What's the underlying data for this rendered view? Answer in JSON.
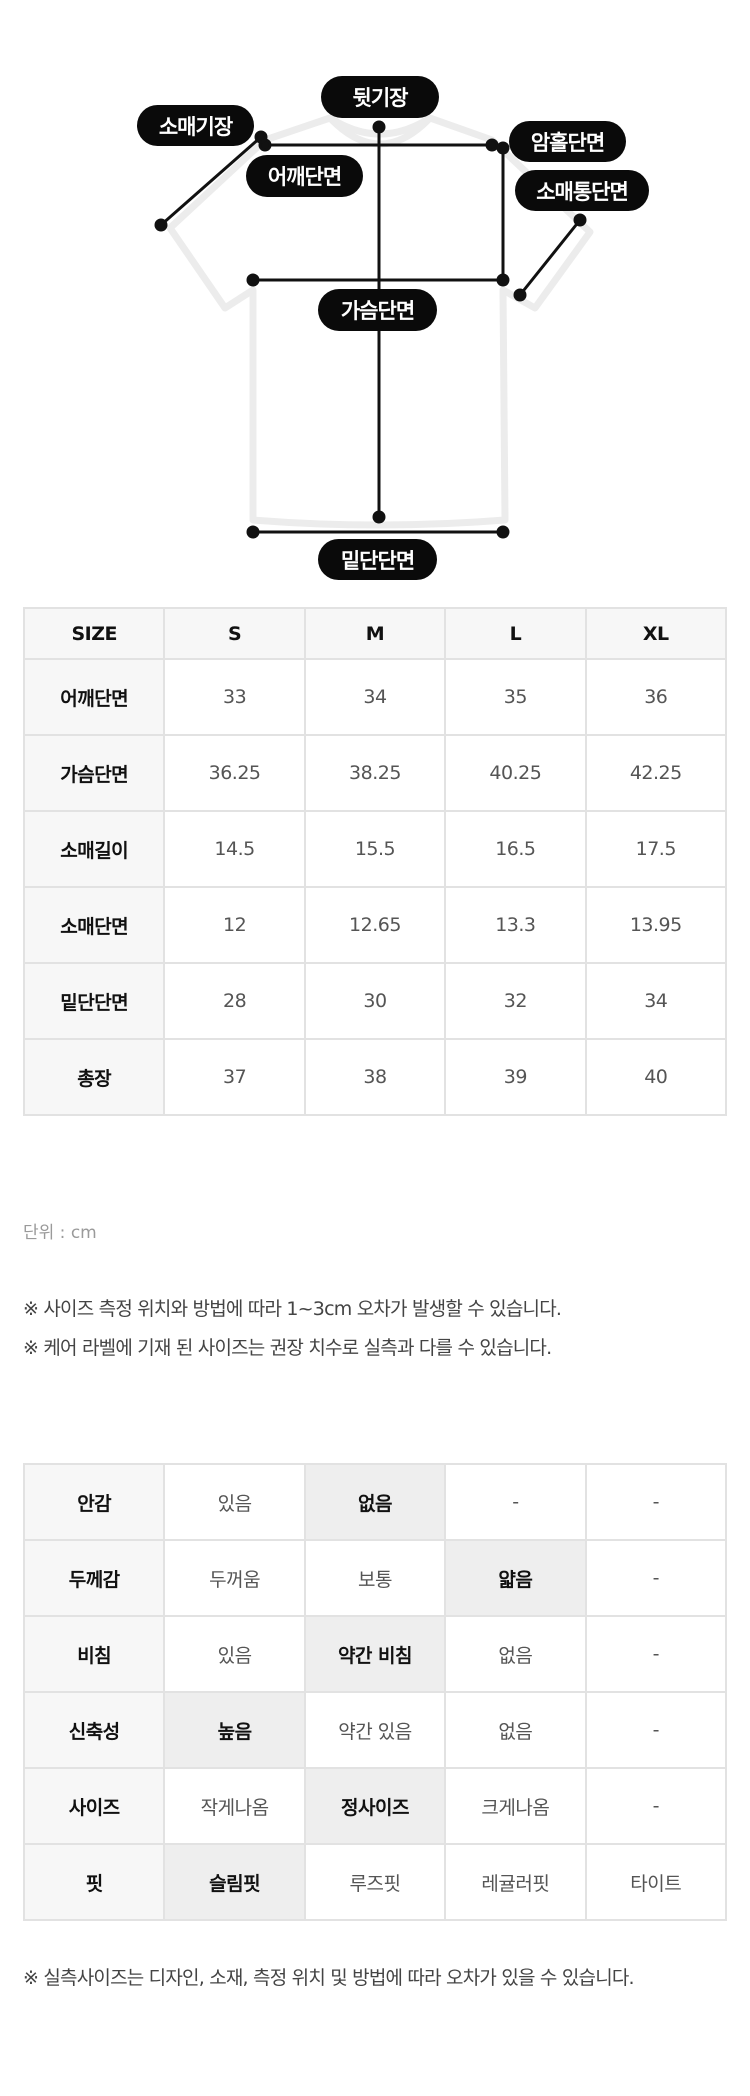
{
  "diagram": {
    "labels": {
      "back_length": "뒷기장",
      "sleeve_length": "소매기장",
      "armhole": "암홀단면",
      "shoulder": "어깨단면",
      "sleeve_opening": "소매통단면",
      "chest": "가슴단면",
      "hem": "밑단단면"
    }
  },
  "size_table": {
    "headers": [
      "SIZE",
      "S",
      "M",
      "L",
      "XL"
    ],
    "rows": [
      {
        "label": "어깨단면",
        "values": [
          "33",
          "34",
          "35",
          "36"
        ]
      },
      {
        "label": "가슴단면",
        "values": [
          "36.25",
          "38.25",
          "40.25",
          "42.25"
        ]
      },
      {
        "label": "소매길이",
        "values": [
          "14.5",
          "15.5",
          "16.5",
          "17.5"
        ]
      },
      {
        "label": "소매단면",
        "values": [
          "12",
          "12.65",
          "13.3",
          "13.95"
        ]
      },
      {
        "label": "밑단단면",
        "values": [
          "28",
          "30",
          "32",
          "34"
        ]
      },
      {
        "label": "총장",
        "values": [
          "37",
          "38",
          "39",
          "40"
        ]
      }
    ]
  },
  "unit": "단위 : cm",
  "notes": [
    "※ 사이즈 측정 위치와 방법에 따라 1~3cm 오차가 발생할 수 있습니다.",
    "※ 케어 라벨에 기재 된 사이즈는 권장 치수로 실측과 다를 수 있습니다."
  ],
  "feature_table": {
    "rows": [
      {
        "label": "안감",
        "options": [
          "있음",
          "없음",
          "-",
          "-"
        ],
        "selected": 1
      },
      {
        "label": "두께감",
        "options": [
          "두꺼움",
          "보통",
          "얇음",
          "-"
        ],
        "selected": 2
      },
      {
        "label": "비침",
        "options": [
          "있음",
          "약간 비침",
          "없음",
          "-"
        ],
        "selected": 1
      },
      {
        "label": "신축성",
        "options": [
          "높음",
          "약간 있음",
          "없음",
          "-"
        ],
        "selected": 0
      },
      {
        "label": "사이즈",
        "options": [
          "작게나옴",
          "정사이즈",
          "크게나옴",
          "-"
        ],
        "selected": 1
      },
      {
        "label": "핏",
        "options": [
          "슬림핏",
          "루즈핏",
          "레귤러핏",
          "타이트"
        ],
        "selected": 0
      }
    ]
  },
  "footnote": "※ 실측사이즈는 디자인, 소재, 측정 위치 및 방법에 따라 오차가 있을 수 있습니다.",
  "colors": {
    "pill": "#0a0a0a",
    "header_bg": "#f7f7f7",
    "selected_bg": "#eeeeee",
    "border": "#e2e2e2"
  }
}
